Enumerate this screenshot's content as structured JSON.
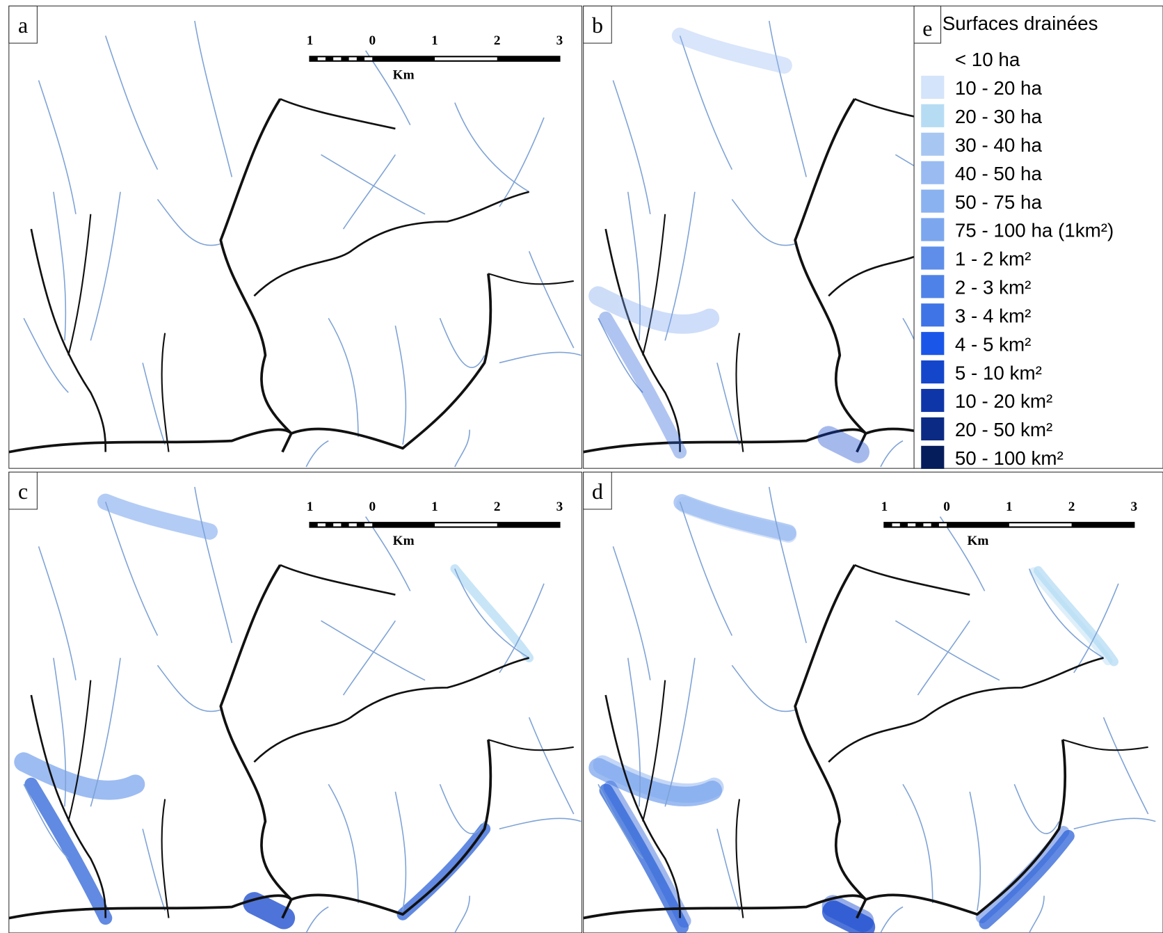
{
  "panels": [
    {
      "label": "a"
    },
    {
      "label": "b"
    },
    {
      "label": "c"
    },
    {
      "label": "d"
    }
  ],
  "scale_bar": {
    "ticks": [
      "1",
      "0",
      "1",
      "2",
      "3"
    ],
    "unit": "Km"
  },
  "legend": {
    "label": "e",
    "title": "Surfaces drainées",
    "items": [
      {
        "label": "< 10 ha",
        "color": "#ffffff"
      },
      {
        "label": "10 - 20 ha",
        "color": "#d4e4fa"
      },
      {
        "label": "20 - 30 ha",
        "color": "#b6dcf4"
      },
      {
        "label": "30 - 40 ha",
        "color": "#a8c6f2"
      },
      {
        "label": "40 - 50 ha",
        "color": "#99bbf2"
      },
      {
        "label": "50 - 75 ha",
        "color": "#8ab2f0"
      },
      {
        "label": "75 - 100 ha (1km²)",
        "color": "#7ca6ee"
      },
      {
        "label": "1 - 2 km²",
        "color": "#5e8eea"
      },
      {
        "label": "2 - 3 km²",
        "color": "#4f82e8"
      },
      {
        "label": "3 - 4 km²",
        "color": "#3f74e6"
      },
      {
        "label": "4 - 5 km²",
        "color": "#1a56e8"
      },
      {
        "label": "5 - 10 km²",
        "color": "#1446cc"
      },
      {
        "label": "10 - 20 km²",
        "color": "#0f36a8"
      },
      {
        "label": "20 - 50 km²",
        "color": "#0b2a84"
      },
      {
        "label": "50 - 100 km²",
        "color": "#061d5c"
      }
    ]
  }
}
